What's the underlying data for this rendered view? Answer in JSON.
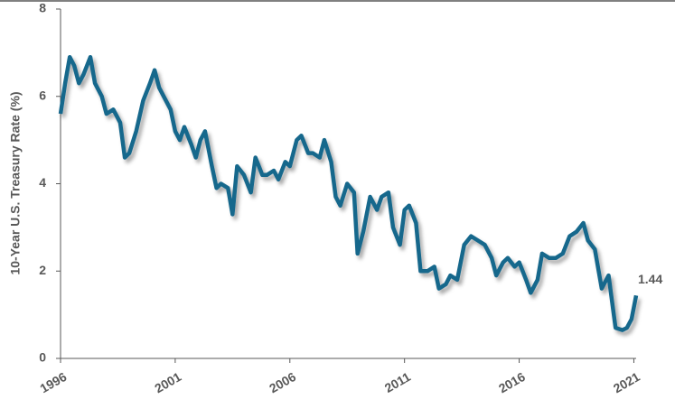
{
  "chart_data": {
    "type": "line",
    "y_label": "10-Year U.S. Treasury Rate (%)",
    "annotation": "1.44",
    "color": "#17678c",
    "x": [
      1996.0,
      1996.2,
      1996.4,
      1996.6,
      1996.8,
      1997.0,
      1997.3,
      1997.5,
      1997.8,
      1998.0,
      1998.3,
      1998.6,
      1998.8,
      1999.0,
      1999.3,
      1999.6,
      1999.9,
      2000.1,
      2000.3,
      2000.5,
      2000.8,
      2001.0,
      2001.2,
      2001.4,
      2001.7,
      2001.9,
      2002.1,
      2002.3,
      2002.6,
      2002.8,
      2003.0,
      2003.3,
      2003.5,
      2003.7,
      2004.0,
      2004.3,
      2004.5,
      2004.8,
      2005.0,
      2005.3,
      2005.5,
      2005.8,
      2006.0,
      2006.3,
      2006.5,
      2006.8,
      2007.0,
      2007.3,
      2007.5,
      2007.8,
      2008.0,
      2008.2,
      2008.5,
      2008.8,
      2008.95,
      2009.2,
      2009.5,
      2009.8,
      2010.0,
      2010.3,
      2010.5,
      2010.8,
      2011.0,
      2011.2,
      2011.5,
      2011.7,
      2012.0,
      2012.3,
      2012.5,
      2012.8,
      2013.0,
      2013.3,
      2013.6,
      2013.9,
      2014.2,
      2014.5,
      2014.8,
      2015.0,
      2015.3,
      2015.5,
      2015.8,
      2016.0,
      2016.3,
      2016.5,
      2016.8,
      2017.0,
      2017.3,
      2017.6,
      2017.9,
      2018.2,
      2018.5,
      2018.8,
      2019.0,
      2019.3,
      2019.6,
      2019.9,
      2020.2,
      2020.5,
      2020.7,
      2020.9,
      2021.1
    ],
    "values": [
      5.6,
      6.3,
      6.9,
      6.7,
      6.3,
      6.5,
      6.9,
      6.3,
      6.0,
      5.6,
      5.7,
      5.4,
      4.6,
      4.7,
      5.2,
      5.9,
      6.3,
      6.6,
      6.2,
      6.0,
      5.7,
      5.2,
      5.0,
      5.3,
      4.9,
      4.6,
      5.0,
      5.2,
      4.4,
      3.9,
      4.0,
      3.9,
      3.3,
      4.4,
      4.2,
      3.8,
      4.6,
      4.2,
      4.2,
      4.3,
      4.1,
      4.5,
      4.4,
      5.0,
      5.1,
      4.7,
      4.7,
      4.6,
      5.0,
      4.5,
      3.7,
      3.5,
      4.0,
      3.8,
      2.4,
      2.9,
      3.7,
      3.4,
      3.7,
      3.8,
      3.0,
      2.6,
      3.4,
      3.5,
      3.1,
      2.0,
      2.0,
      2.1,
      1.6,
      1.7,
      1.9,
      1.8,
      2.6,
      2.8,
      2.7,
      2.6,
      2.3,
      1.9,
      2.2,
      2.3,
      2.1,
      2.2,
      1.8,
      1.5,
      1.8,
      2.4,
      2.3,
      2.3,
      2.4,
      2.8,
      2.9,
      3.1,
      2.7,
      2.5,
      1.6,
      1.9,
      0.7,
      0.65,
      0.7,
      0.9,
      1.44
    ],
    "xlim": [
      1996,
      2021.1
    ],
    "xticks": [
      1996,
      2001,
      2006,
      2011,
      2016,
      2021
    ],
    "ylim": [
      0,
      8
    ],
    "yticks": [
      0,
      2,
      4,
      6,
      8
    ]
  }
}
